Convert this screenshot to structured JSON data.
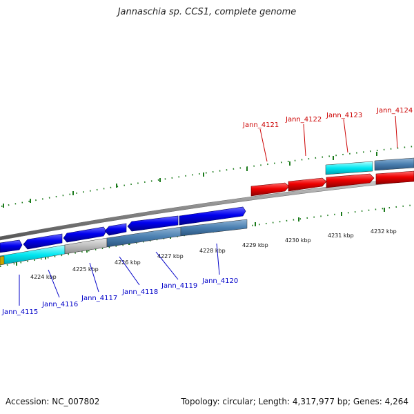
{
  "title": "Jannaschia sp. CCS1, complete genome",
  "accession": "Accession: NC_007802",
  "topology": "Topology: circular; Length: 4,317,977 bp; Genes: 4,264",
  "kbp_labels": [
    "4224 kbp",
    "4225 kbp",
    "4226 kbp",
    "4227 kbp",
    "4228 kbp",
    "4229 kbp",
    "4230 kbp",
    "4231 kbp",
    "4232 kbp"
  ],
  "genes_below": [
    "Jann_4115",
    "Jann_4116",
    "Jann_4117",
    "Jann_4118",
    "Jann_4119",
    "Jann_4120"
  ],
  "genes_above": [
    "Jann_4121",
    "Jann_4122",
    "Jann_4123",
    "Jann_4124"
  ],
  "colors": {
    "blue_gene": "#0000e0",
    "red_gene": "#e00000",
    "steel_gene": "#4a7fb0",
    "cyan_gene": "#00e0ee",
    "gray_gene": "#c0c0c0",
    "backbone": "#808080",
    "tick": "#1a7a1a",
    "label_blue": "#0000c8",
    "label_red": "#cc0000"
  }
}
